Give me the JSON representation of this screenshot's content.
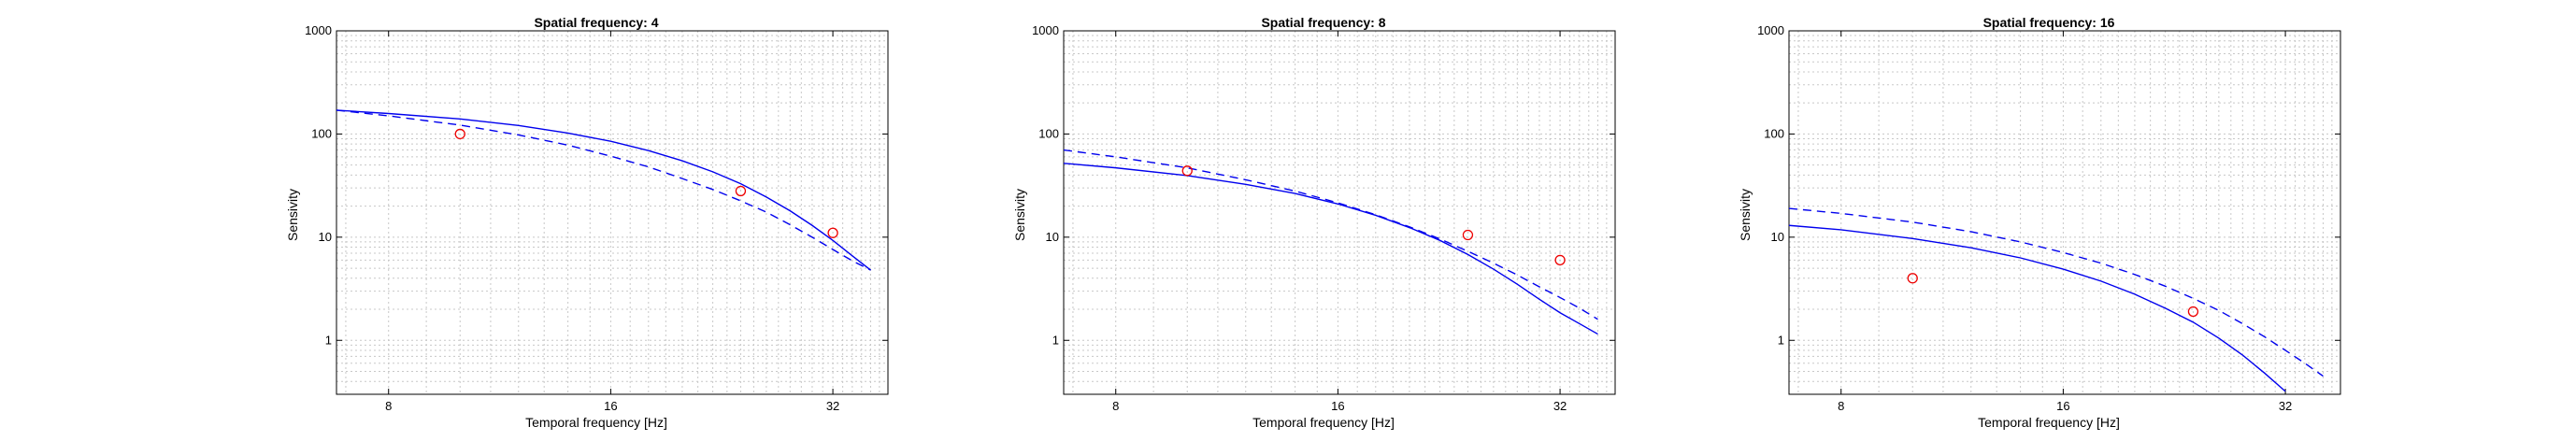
{
  "colors": {
    "model": "#0000ee",
    "data": "#ee0000",
    "grid": "#c8c8c8",
    "axes": "#000000"
  },
  "chart_data": [
    {
      "type": "line",
      "title": "Spatial frequency: 4",
      "xlabel": "Temporal frequency [Hz]",
      "ylabel": "Sensivity",
      "xscale": "log",
      "yscale": "log",
      "xlim": [
        6.8,
        38
      ],
      "ylim": [
        0.3,
        1000
      ],
      "xticks": [
        8,
        16,
        32
      ],
      "yticks": [
        1,
        10,
        100,
        1000
      ],
      "grid": true,
      "series": [
        {
          "style": "solid",
          "color": "#0000ee",
          "x": [
            6.8,
            8,
            10,
            12,
            14,
            16,
            18,
            20,
            22,
            24,
            26,
            28,
            30,
            32,
            34,
            36
          ],
          "y": [
            170,
            158,
            140,
            121,
            102,
            85,
            69,
            55,
            43,
            33,
            24.5,
            18,
            13,
            9.3,
            6.6,
            4.8
          ]
        },
        {
          "style": "dashed",
          "color": "#0000ee",
          "x": [
            6.8,
            8,
            10,
            12,
            14,
            16,
            18,
            20,
            22,
            24,
            26,
            28,
            30,
            32,
            34,
            36
          ],
          "y": [
            170,
            150,
            122,
            98,
            78,
            61,
            48,
            37,
            29,
            22.5,
            17.5,
            13.2,
            10,
            7.6,
            5.9,
            4.8
          ]
        },
        {
          "style": "markers",
          "color": "#ee0000",
          "x": [
            10,
            24,
            32
          ],
          "y": [
            100,
            28,
            11
          ]
        }
      ]
    },
    {
      "type": "line",
      "title": "Spatial frequency: 8",
      "xlabel": "Temporal frequency [Hz]",
      "ylabel": "Sensivity",
      "xscale": "log",
      "yscale": "log",
      "xlim": [
        6.8,
        38
      ],
      "ylim": [
        0.3,
        1000
      ],
      "xticks": [
        8,
        16,
        32
      ],
      "yticks": [
        1,
        10,
        100,
        1000
      ],
      "grid": true,
      "series": [
        {
          "style": "solid",
          "color": "#0000ee",
          "x": [
            6.8,
            8,
            10,
            12,
            14,
            16,
            18,
            20,
            22,
            24,
            26,
            28,
            30,
            32,
            34,
            36
          ],
          "y": [
            52,
            47,
            39.5,
            32.5,
            26.5,
            21,
            16.3,
            12.4,
            9.3,
            6.8,
            4.9,
            3.5,
            2.5,
            1.85,
            1.45,
            1.15
          ]
        },
        {
          "style": "dashed",
          "color": "#0000ee",
          "x": [
            6.8,
            8,
            10,
            12,
            14,
            16,
            18,
            20,
            22,
            24,
            26,
            28,
            30,
            32,
            34,
            36
          ],
          "y": [
            70,
            60,
            47,
            36,
            28,
            21.5,
            16.5,
            12.6,
            9.6,
            7.3,
            5.6,
            4.3,
            3.3,
            2.6,
            2.05,
            1.6
          ]
        },
        {
          "style": "markers",
          "color": "#ee0000",
          "x": [
            10,
            24,
            32
          ],
          "y": [
            44,
            10.5,
            6
          ]
        }
      ]
    },
    {
      "type": "line",
      "title": "Spatial frequency: 16",
      "xlabel": "Temporal frequency [Hz]",
      "ylabel": "Sensivity",
      "xscale": "log",
      "yscale": "log",
      "xlim": [
        6.8,
        38
      ],
      "ylim": [
        0.3,
        1000
      ],
      "xticks": [
        8,
        16,
        32
      ],
      "yticks": [
        1,
        10,
        100,
        1000
      ],
      "grid": true,
      "series": [
        {
          "style": "solid",
          "color": "#0000ee",
          "x": [
            6.8,
            8,
            10,
            12,
            14,
            16,
            18,
            20,
            22,
            24,
            26,
            28,
            30,
            32
          ],
          "y": [
            13,
            11.8,
            9.7,
            7.9,
            6.3,
            4.9,
            3.75,
            2.8,
            2.05,
            1.5,
            1.05,
            0.72,
            0.48,
            0.32
          ]
        },
        {
          "style": "dashed",
          "color": "#0000ee",
          "x": [
            6.8,
            8,
            10,
            12,
            14,
            16,
            18,
            20,
            22,
            24,
            26,
            28,
            30,
            32,
            34,
            36
          ],
          "y": [
            19,
            17,
            14,
            11.3,
            9,
            7.1,
            5.6,
            4.35,
            3.35,
            2.55,
            1.95,
            1.45,
            1.08,
            0.8,
            0.6,
            0.45
          ]
        },
        {
          "style": "markers",
          "color": "#ee0000",
          "x": [
            10,
            24
          ],
          "y": [
            4,
            1.9
          ]
        }
      ]
    }
  ]
}
